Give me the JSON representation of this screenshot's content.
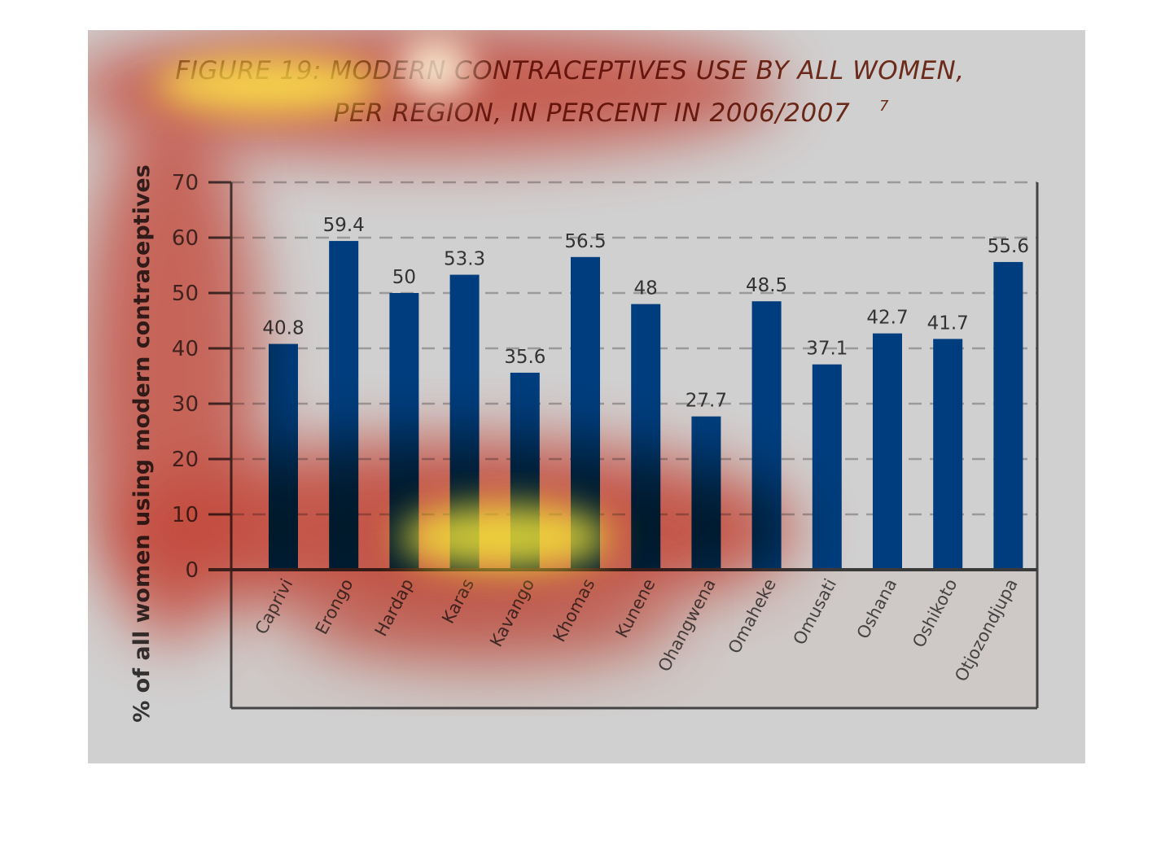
{
  "chart_data": {
    "type": "bar",
    "title_line1": "FIGURE 19: MODERN CONTRACEPTIVES USE BY ALL WOMEN,",
    "title_line2": "PER REGION, IN PERCENT IN 2006/2007",
    "title_footnote": "7",
    "ylabel": "% of all women using modern contraceptives",
    "xlabel": "",
    "categories": [
      "Caprivi",
      "Erongo",
      "Hardap",
      "Karas",
      "Kavango",
      "Khomas",
      "Kunene",
      "Ohangwena",
      "Omaheke",
      "Omusati",
      "Oshana",
      "Oshikoto",
      "Otjozondjupa"
    ],
    "values": [
      40.8,
      59.4,
      50,
      53.3,
      35.6,
      56.5,
      48,
      27.7,
      48.5,
      37.1,
      42.7,
      41.7,
      55.6
    ],
    "value_labels": [
      "40.8",
      "59.4",
      "50",
      "53.3",
      "35.6",
      "56.5",
      "48",
      "27.7",
      "48.5",
      "37.1",
      "42.7",
      "41.7",
      "55.6"
    ],
    "ylim": [
      0,
      70
    ],
    "yticks": [
      "0",
      "10",
      "20",
      "30",
      "40",
      "50",
      "60",
      "70"
    ],
    "grid": true,
    "bar_color": "#003d7e",
    "background_color": "#d0d0d0"
  }
}
